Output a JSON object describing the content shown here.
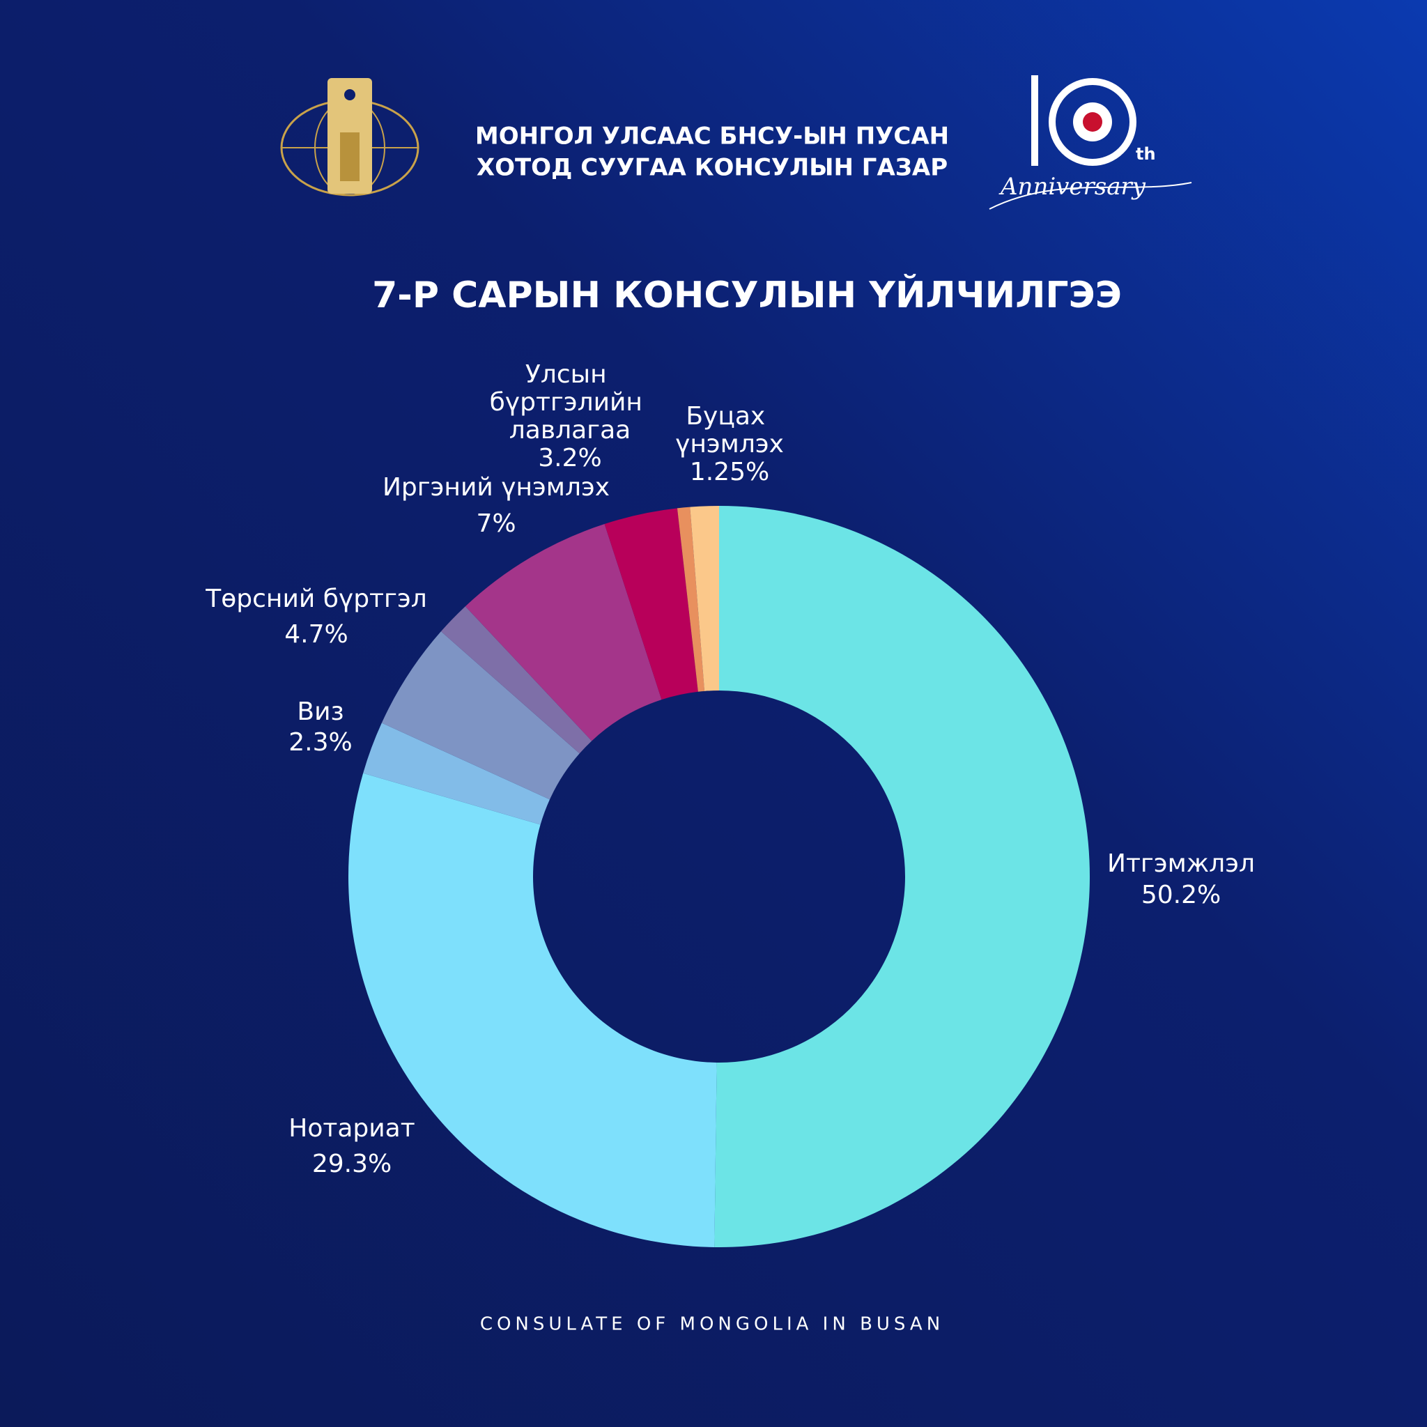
{
  "header": {
    "lines": [
      "МОНГОЛ УЛСААС БНСУ-ЫН ПУСАН",
      "ХОТОД СУУГАА КОНСУЛЫН ГАЗАР"
    ]
  },
  "anniversary_logo": {
    "suffix": "th",
    "script": "Anniversary"
  },
  "chart_data": {
    "type": "donut",
    "title": "7-Р САРЫН КОНСУЛЫН ҮЙЛЧИЛГЭЭ",
    "categories": [
      "Итгэмжлэл",
      "Нотариат",
      "Виз",
      "Төрсний бүртгэл",
      null,
      "Иргэний үнэмлэх",
      "Улсын бүртгэлийн лавлагаа",
      null,
      "Буцах үнэмлэх"
    ],
    "values": [
      50.2,
      29.3,
      2.3,
      4.7,
      1.5,
      7,
      3.2,
      0.55,
      1.25
    ],
    "value_labels": [
      "50.2%",
      "29.3%",
      "2.3%",
      "4.7%",
      null,
      "7%",
      "3.2%",
      null,
      "1.25%"
    ],
    "colors": [
      "#6ce4e6",
      "#7ee0fc",
      "#82bce8",
      "#7e94c4",
      "#7e6fa8",
      "#a4358a",
      "#b8005a",
      "#e8905e",
      "#fbc88a"
    ]
  },
  "footer": "CONSULATE OF MONGOLIA IN BUSAN"
}
